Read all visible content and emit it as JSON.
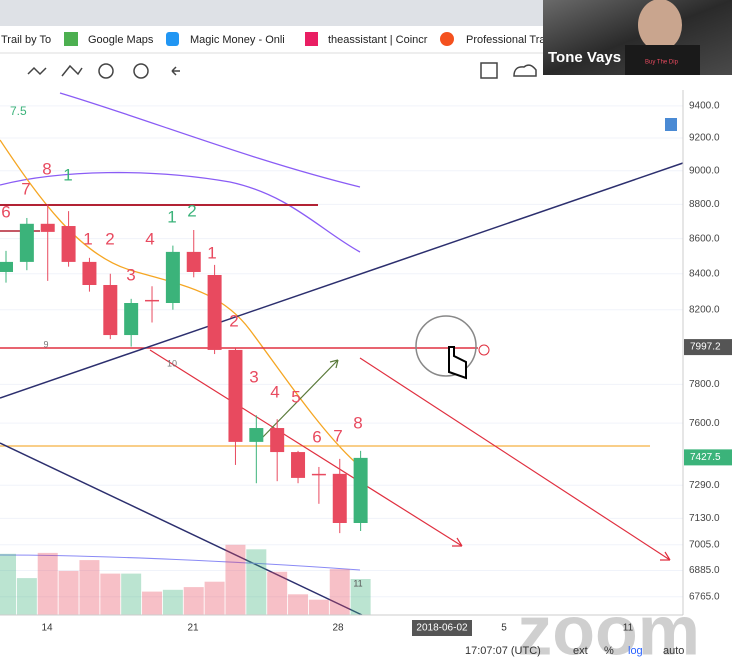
{
  "bookmarks": [
    "Trail by To",
    "Google Maps",
    "Magic Money - Onli",
    "theassistant | Coincr",
    "Professional Tra"
  ],
  "webcam": {
    "name": "Tone Vays",
    "logo": "Buy The Dip"
  },
  "chart": {
    "log_scale": true,
    "grid": true,
    "ylim": [
      6683,
      9488
    ],
    "yticks": [
      {
        "value": 9400,
        "label": "9400.0"
      },
      {
        "value": 9200,
        "label": "9200.0"
      },
      {
        "value": 9000,
        "label": "9000.0"
      },
      {
        "value": 8800,
        "label": "8800.0"
      },
      {
        "value": 8600,
        "label": "8600.0"
      },
      {
        "value": 8400,
        "label": "8400.0"
      },
      {
        "value": 8200,
        "label": "8200.0"
      },
      {
        "value": 7800,
        "label": "7800.0"
      },
      {
        "value": 7600,
        "label": "7600.0"
      },
      {
        "value": 7290,
        "label": "7290.0"
      },
      {
        "value": 7130,
        "label": "7130.0"
      },
      {
        "value": 7005,
        "label": "7005.0"
      },
      {
        "value": 6885,
        "label": "6885.0"
      },
      {
        "value": 6765,
        "label": "6765.0"
      }
    ],
    "price_labels": [
      {
        "value": 7997.2,
        "label": "7997.2",
        "color": "#555555"
      },
      {
        "value": 7427.5,
        "label": "7427.5",
        "color": "#3bb37a"
      }
    ],
    "x_labels": [
      "14",
      "21",
      "28",
      "2018-06-02",
      "5",
      "11"
    ],
    "up_color": "#3bb37a",
    "down_color": "#e84a5f",
    "candles": [
      {
        "open": 8410,
        "close": 8467,
        "high": 8530,
        "low": 8350
      },
      {
        "open": 8467,
        "close": 8686,
        "high": 8720,
        "low": 8420
      },
      {
        "open": 8686,
        "close": 8639,
        "high": 8800,
        "low": 8360
      },
      {
        "open": 8673,
        "close": 8467,
        "high": 8760,
        "low": 8440
      },
      {
        "open": 8467,
        "close": 8337,
        "high": 8490,
        "low": 8300
      },
      {
        "open": 8337,
        "close": 8062,
        "high": 8400,
        "low": 8040
      },
      {
        "open": 8062,
        "close": 8237,
        "high": 8260,
        "low": 8000
      },
      {
        "open": 8254,
        "close": 8250,
        "high": 8330,
        "low": 8130
      },
      {
        "open": 8237,
        "close": 8524,
        "high": 8560,
        "low": 8200
      },
      {
        "open": 8524,
        "close": 8410,
        "high": 8650,
        "low": 8380
      },
      {
        "open": 8393,
        "close": 7982,
        "high": 8450,
        "low": 7960
      },
      {
        "open": 7982,
        "close": 7505,
        "high": 7990,
        "low": 7390
      },
      {
        "open": 7505,
        "close": 7575,
        "high": 7640,
        "low": 7300
      },
      {
        "open": 7575,
        "close": 7454,
        "high": 7620,
        "low": 7310
      },
      {
        "open": 7454,
        "close": 7326,
        "high": 7460,
        "low": 7300
      },
      {
        "open": 7346,
        "close": 7341,
        "high": 7380,
        "low": 7200
      },
      {
        "open": 7346,
        "close": 7108,
        "high": 7420,
        "low": 7060
      },
      {
        "open": 7108,
        "close": 7425,
        "high": 7460,
        "low": 7070
      }
    ],
    "volume_lim": [
      0,
      100
    ],
    "volume": [
      68,
      41,
      69,
      49,
      61,
      46,
      46,
      26,
      28,
      31,
      37,
      78,
      73,
      48,
      23,
      17,
      51,
      40
    ],
    "counts": [
      {
        "text": "8",
        "color": "#e84a5f"
      },
      {
        "text": "7",
        "color": "#e84a5f"
      },
      {
        "text": "1",
        "color": "#3bb37a"
      },
      {
        "text": "6",
        "color": "#e84a5f"
      },
      {
        "text": "1",
        "color": "#e84a5f"
      },
      {
        "text": "2",
        "color": "#e84a5f"
      },
      {
        "text": "4",
        "color": "#e84a5f"
      },
      {
        "text": "3",
        "color": "#e84a5f"
      },
      {
        "text": "1",
        "color": "#3bb37a"
      },
      {
        "text": "2",
        "color": "#3bb37a"
      },
      {
        "text": "1",
        "color": "#e84a5f"
      },
      {
        "text": "2",
        "color": "#e84a5f"
      },
      {
        "text": "3",
        "color": "#e84a5f"
      },
      {
        "text": "4",
        "color": "#e84a5f"
      },
      {
        "text": "5",
        "color": "#e84a5f"
      },
      {
        "text": "6",
        "color": "#e84a5f"
      },
      {
        "text": "7",
        "color": "#e84a5f"
      },
      {
        "text": "8",
        "color": "#e84a5f"
      }
    ],
    "small_labels": [
      "9",
      "10",
      "11"
    ],
    "corner_label": "7.5"
  },
  "status_bar": {
    "time": "17:07:07 (UTC)",
    "ext": "ext",
    "percent": "%",
    "log": "log",
    "auto": "auto"
  },
  "watermark": "zoom"
}
